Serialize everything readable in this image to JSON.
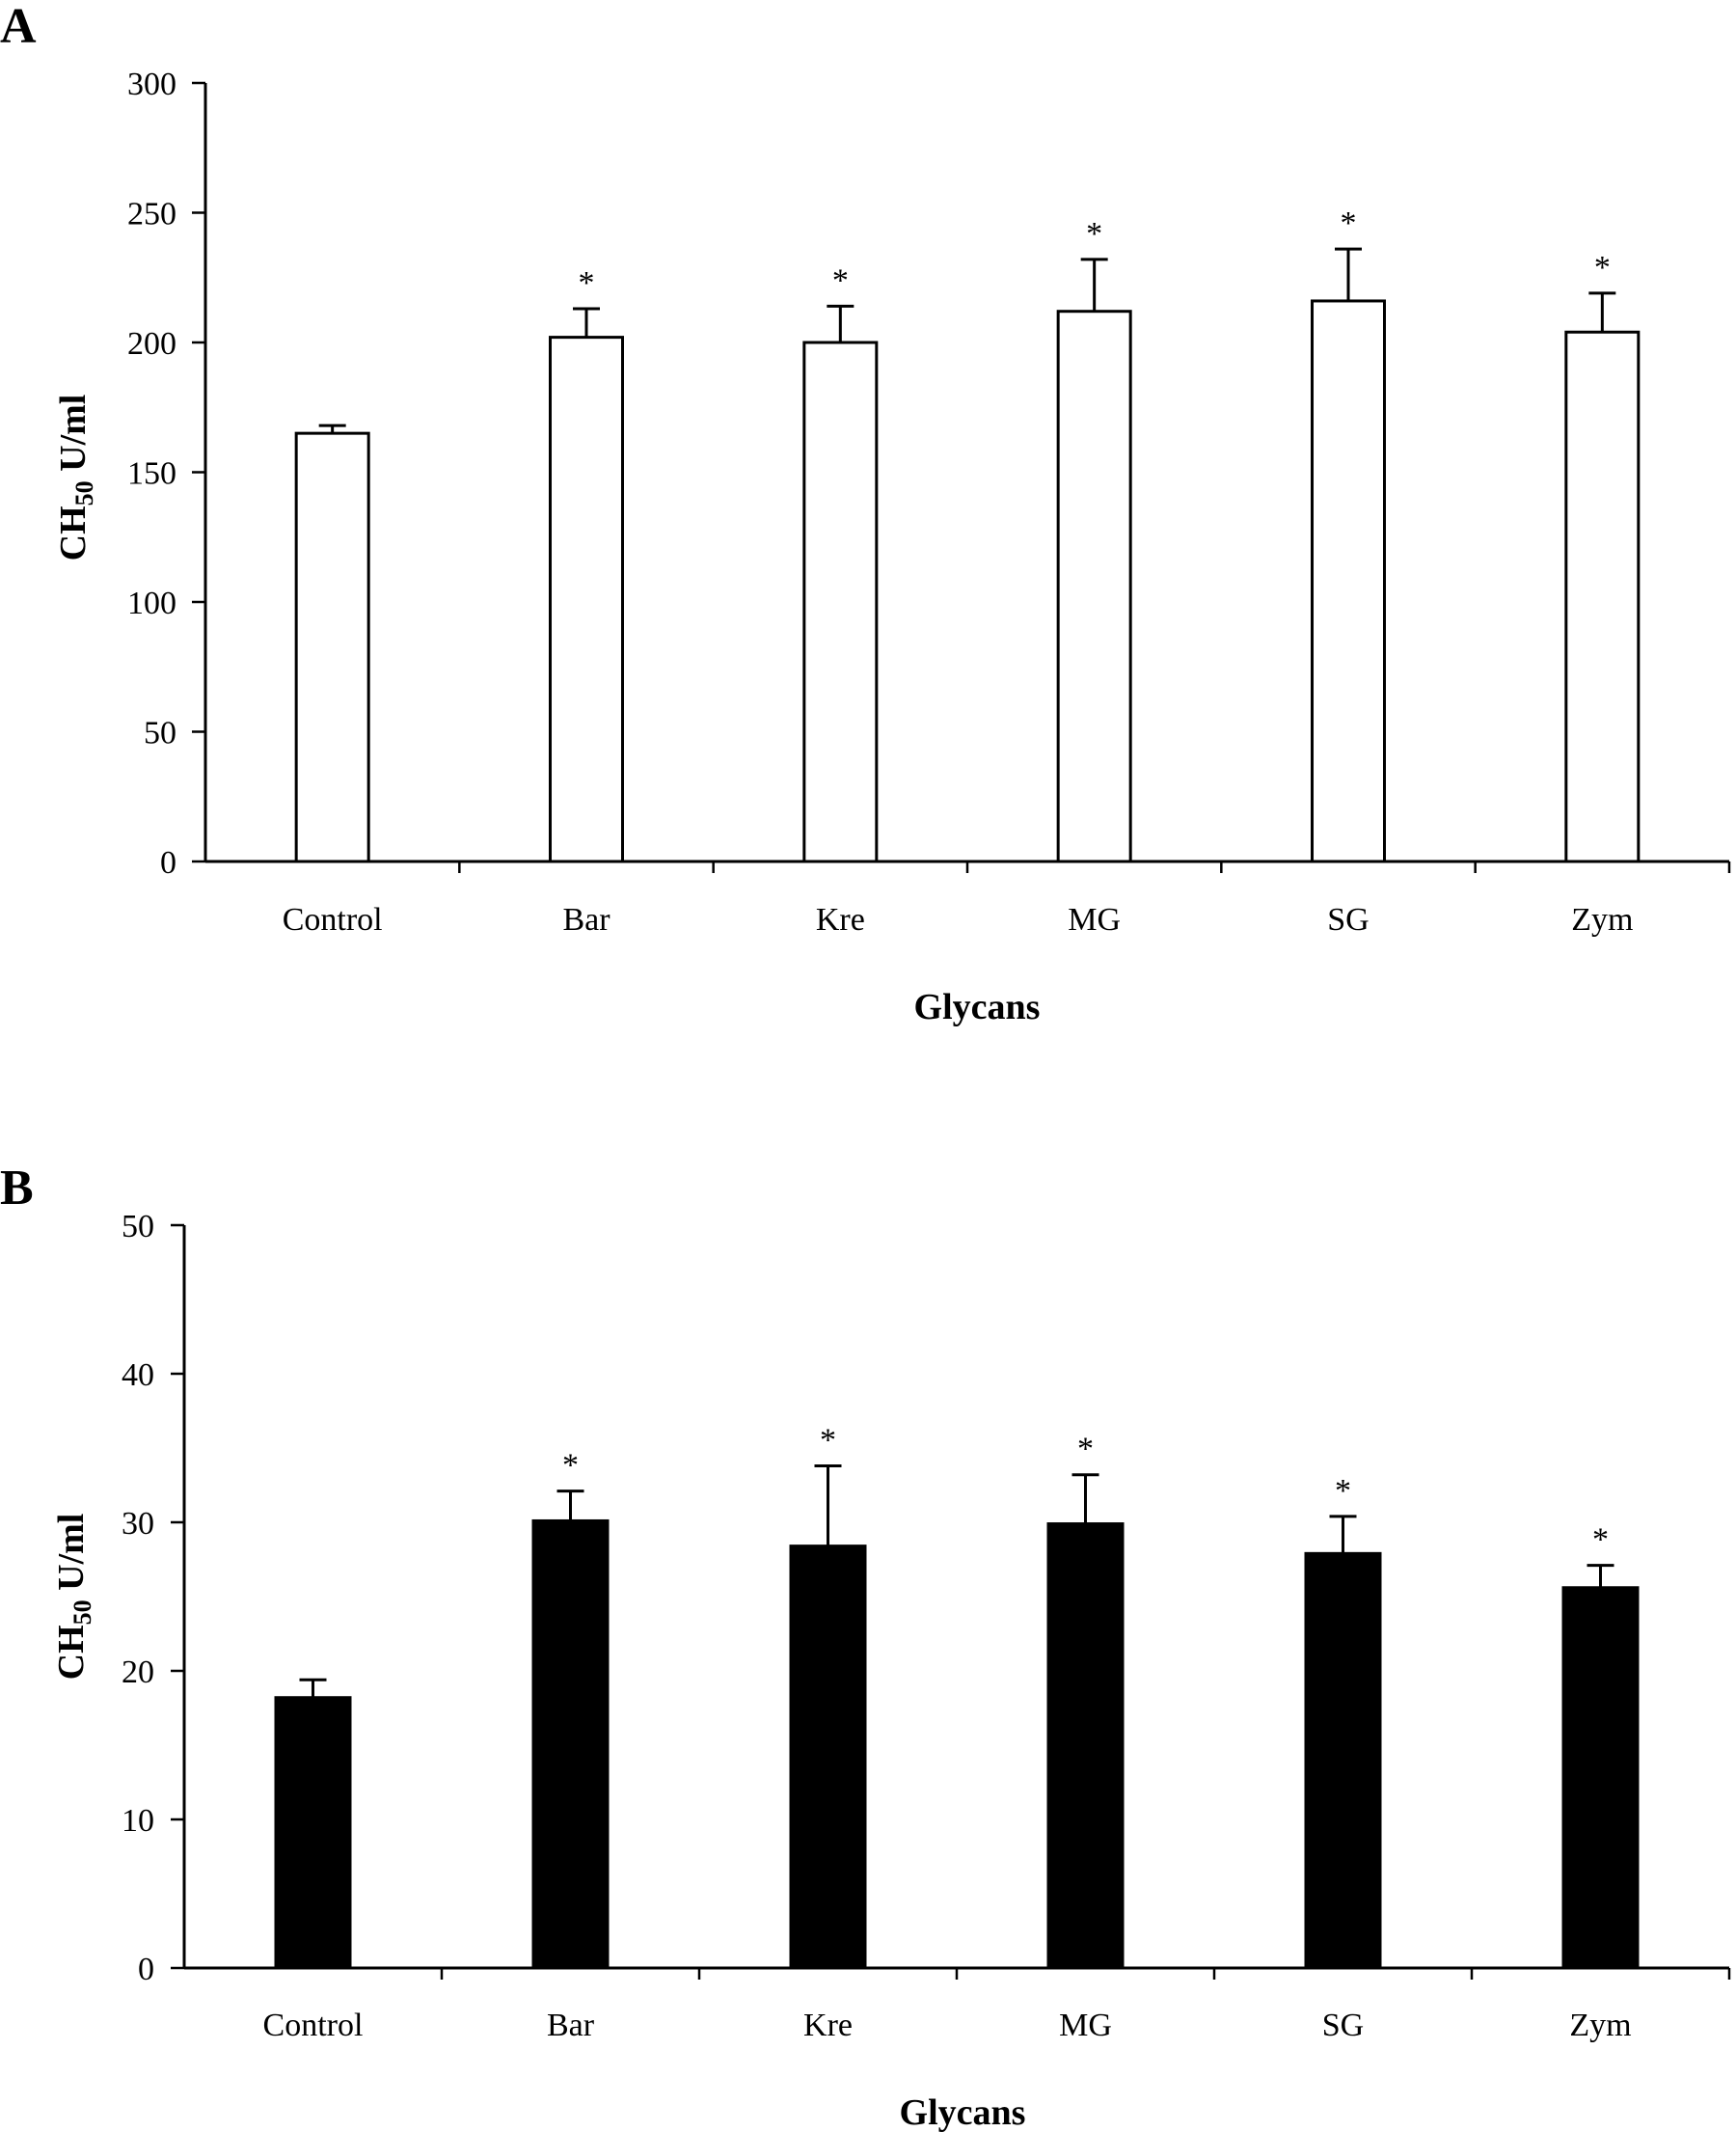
{
  "chart_data": [
    {
      "type": "bar",
      "panel": "A",
      "categories": [
        "Control",
        "Bar",
        "Kre",
        "MG",
        "SG",
        "Zym"
      ],
      "values": [
        165,
        202,
        200,
        212,
        216,
        204
      ],
      "errors": [
        3,
        11,
        14,
        20,
        20,
        15
      ],
      "significance": [
        "",
        "*",
        "*",
        "*",
        "*",
        "*"
      ],
      "xlabel": "Glycans",
      "ylabel": {
        "main": "CH",
        "sub": "50",
        "unit": " U/ml"
      },
      "ylim": [
        0,
        300
      ],
      "yticks": [
        0,
        50,
        100,
        150,
        200,
        250,
        300
      ],
      "bar_fill": "#ffffff",
      "bar_stroke": "#000000",
      "grid": false
    },
    {
      "type": "bar",
      "panel": "B",
      "categories": [
        "Control",
        "Bar",
        "Kre",
        "MG",
        "SG",
        "Zym"
      ],
      "values": [
        18.2,
        30.1,
        28.4,
        29.9,
        27.9,
        25.6
      ],
      "errors": [
        1.2,
        2.0,
        5.4,
        3.3,
        2.5,
        1.5
      ],
      "significance": [
        "",
        "*",
        "*",
        "*",
        "*",
        "*"
      ],
      "xlabel": "Glycans",
      "ylabel": {
        "main": "CH",
        "sub": "50",
        "unit": " U/ml"
      },
      "ylim": [
        0,
        50
      ],
      "yticks": [
        0,
        10,
        20,
        30,
        40,
        50
      ],
      "bar_fill": "#000000",
      "bar_stroke": "#000000",
      "grid": false
    }
  ]
}
